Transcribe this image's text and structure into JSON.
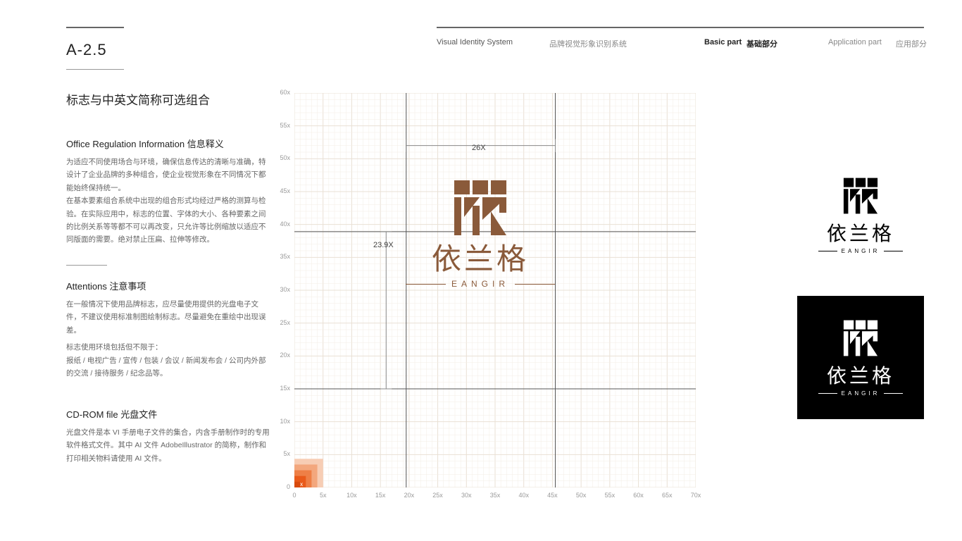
{
  "header": {
    "vis_en": "Visual Identity System",
    "vis_cn": "品牌视觉形象识别系统",
    "basic_en": "Basic part",
    "basic_cn": "基础部分",
    "app_en": "Application part",
    "app_cn": "应用部分"
  },
  "page_no": "A-2.5",
  "title": "标志与中英文简称可选组合",
  "section1": {
    "heading": "Office Regulation Information 信息释义",
    "p1": "为适应不同使用场合与环境，确保信息传达的清晰与准确，特设计了企业品牌的多种组合，使企业视觉形象在不同情况下都能始终保持统一。",
    "p2": "在基本要素组合系统中出现的组合形式均经过严格的测算与检验。在实际应用中，标志的位置、字体的大小、各种要素之间的比例关系等等都不可以再改变，只允许等比例缩放以适应不同版面的需要。绝对禁止压扁、拉伸等修改。"
  },
  "section2": {
    "heading": "Attentions 注意事项",
    "p1": "在一般情况下使用品牌标志，应尽量使用提供的光盘电子文件，不建议使用标准制图绘制标志。尽量避免在重绘中出现误差。",
    "p2": "标志使用环境包括但不限于：",
    "p3": "报纸 / 电视广告 / 宣传 / 包装 / 会议 / 新闻发布会 / 公司内外部的交流 / 接待服务 / 纪念品等。"
  },
  "section3": {
    "heading": "CD-ROM file 光盘文件",
    "p1": "光盘文件是本 VI 手册电子文件的集合，内含手册制作时的专用软件格式文件。其中 AI 文件 AdobeIllustrator 的简称，制作和打印相关物料请使用 AI 文件。"
  },
  "grid": {
    "yticks": [
      "60x",
      "55x",
      "50x",
      "45x",
      "40x",
      "35x",
      "30x",
      "25x",
      "20x",
      "15x",
      "10x",
      "5x",
      "0"
    ],
    "xticks": [
      "0",
      "5x",
      "10x",
      "15x",
      "20x",
      "25x",
      "30x",
      "35x",
      "40x",
      "45x",
      "50x",
      "55x",
      "60x",
      "65x",
      "70x"
    ],
    "dim_w": "26X",
    "dim_h": "23.9X",
    "unit_label": "x",
    "y_max": 60,
    "x_max": 70,
    "guide_x": [
      19.5,
      45.5
    ],
    "guide_y": [
      15,
      38.9
    ],
    "colors": {
      "grid_minor": "#f3ede5",
      "grid_major": "#e9e0d4",
      "guide": "#555555",
      "dim_line": "#888888",
      "swatch": [
        "#f7cdb4",
        "#f3a77d",
        "#ee7f46",
        "#e95a1a",
        "#d84a0d"
      ]
    }
  },
  "brand": {
    "cn": "依兰格",
    "en": "EANGIR",
    "color_hex": "#8a5a3a",
    "black_hex": "#000000",
    "white_hex": "#ffffff"
  }
}
